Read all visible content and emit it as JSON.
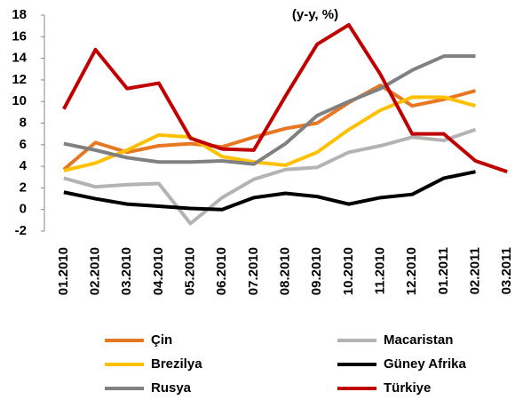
{
  "chart_data": {
    "type": "line",
    "title": "(y-y, %)",
    "categories": [
      "01.2010",
      "02.2010",
      "03.2010",
      "04.2010",
      "05.2010",
      "06.2010",
      "07.2010",
      "08.2010",
      "09.2010",
      "10.2010",
      "11.2010",
      "12.2010",
      "01.2011",
      "02.2011",
      "03.2011"
    ],
    "ylim": [
      -2,
      18
    ],
    "yticks": [
      -2,
      0,
      2,
      4,
      6,
      8,
      10,
      12,
      14,
      16,
      18
    ],
    "series": [
      {
        "name": "Çin",
        "color": "#e87722",
        "values": [
          3.7,
          6.2,
          5.3,
          5.9,
          6.1,
          5.8,
          6.7,
          7.5,
          8.0,
          9.9,
          11.5,
          9.6,
          10.2,
          11.0,
          null
        ]
      },
      {
        "name": "Macaristan",
        "color": "#b3b3b3",
        "values": [
          2.9,
          2.1,
          2.3,
          2.4,
          -1.3,
          1.1,
          2.8,
          3.7,
          3.9,
          5.3,
          5.9,
          6.7,
          6.4,
          7.4,
          null
        ]
      },
      {
        "name": "Brezilya",
        "color": "#ffc000",
        "values": [
          3.6,
          4.3,
          5.5,
          6.9,
          6.7,
          4.9,
          4.4,
          4.1,
          5.3,
          7.4,
          9.2,
          10.4,
          10.4,
          9.6,
          null
        ]
      },
      {
        "name": "Güney Afrika",
        "color": "#000000",
        "values": [
          1.6,
          1.0,
          0.5,
          0.3,
          0.1,
          0.0,
          1.1,
          1.5,
          1.2,
          0.5,
          1.1,
          1.4,
          2.9,
          3.5,
          null
        ]
      },
      {
        "name": "Rusya",
        "color": "#808080",
        "values": [
          6.1,
          5.5,
          4.8,
          4.4,
          4.4,
          4.5,
          4.2,
          6.1,
          8.7,
          10.0,
          11.2,
          12.9,
          14.2,
          14.2,
          null
        ]
      },
      {
        "name": "Türkiye",
        "color": "#c00000",
        "values": [
          9.3,
          14.8,
          11.2,
          11.7,
          6.6,
          5.6,
          5.5,
          10.5,
          15.3,
          17.1,
          12.5,
          7.0,
          7.0,
          4.5,
          3.5
        ]
      }
    ]
  }
}
